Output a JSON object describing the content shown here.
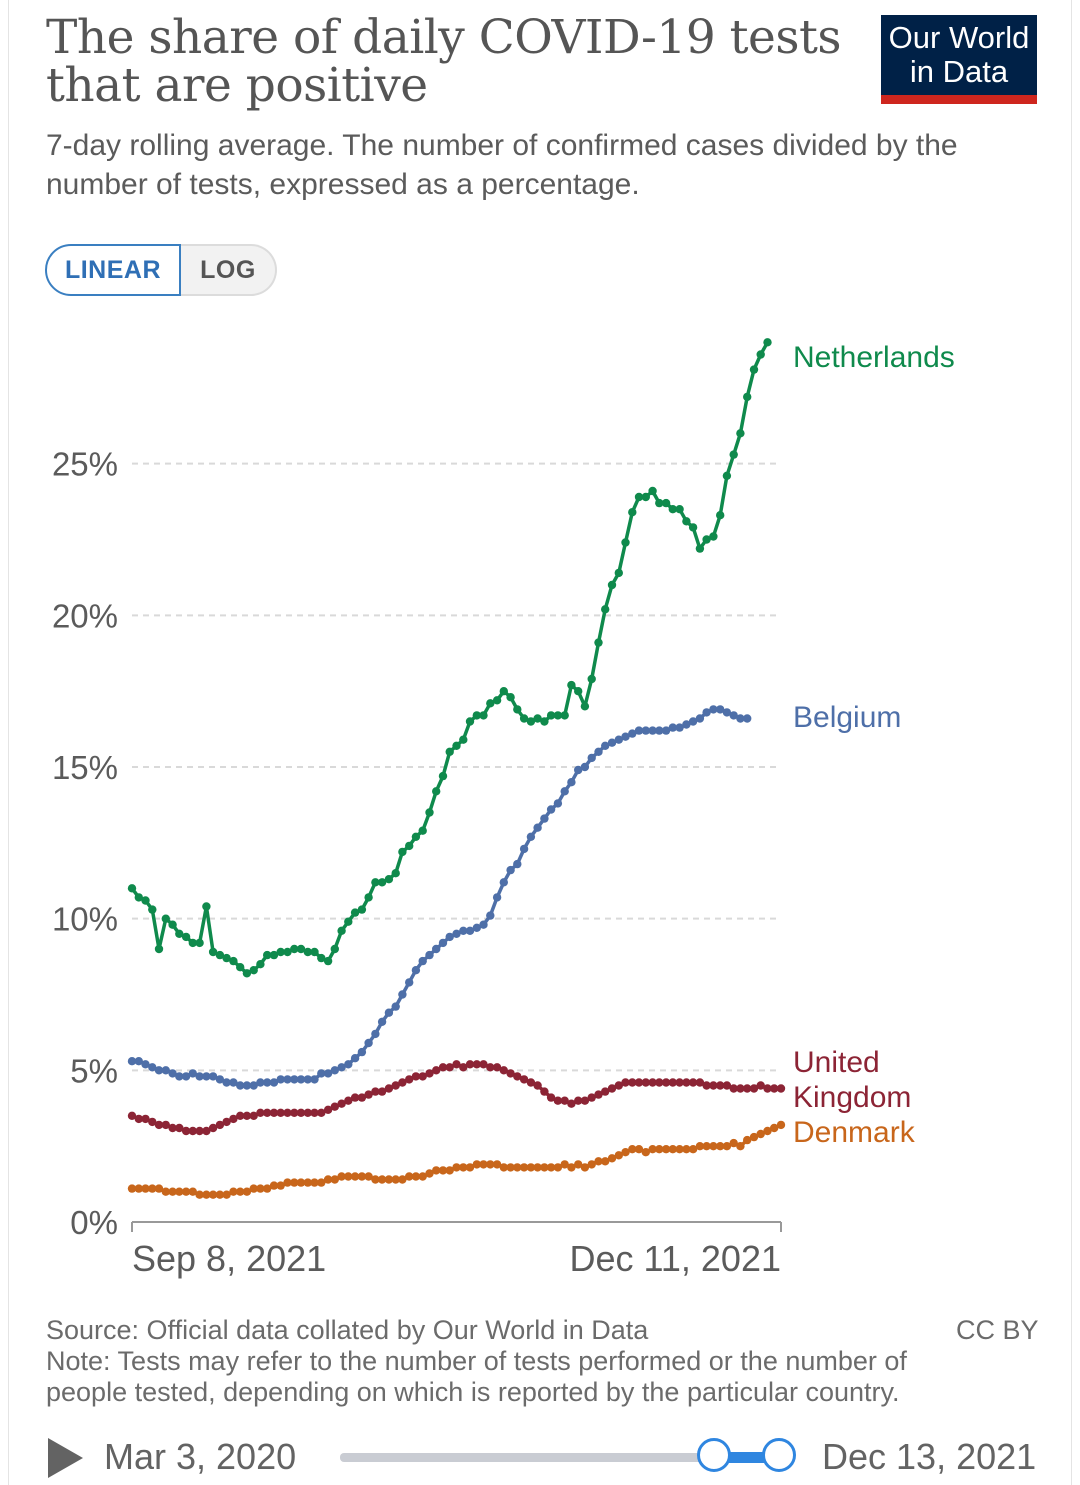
{
  "header": {
    "title": "The share of daily COVID-19 tests that are positive",
    "subtitle": "7-day rolling average. The number of confirmed cases divided by the number of tests, expressed as a percentage.",
    "logo_line1": "Our World",
    "logo_line2": "in Data"
  },
  "scale_toggle": {
    "options": [
      "LINEAR",
      "LOG"
    ],
    "selected": "LINEAR"
  },
  "colors": {
    "Netherlands": "#0f8a4c",
    "Belgium": "#4e6fa8",
    "United Kingdom": "#8c2435",
    "Denmark": "#c8661b",
    "grid": "#d9d9d9",
    "axis_text": "#5b5b5b",
    "logo_bg": "#002147",
    "logo_bar": "#ce261e",
    "accent": "#2f86e0"
  },
  "chart_data": {
    "type": "line",
    "title": "The share of daily COVID-19 tests that are positive",
    "subtitle": "7-day rolling average. The number of confirmed cases divided by the number of tests, expressed as a percentage.",
    "xlabel": "",
    "ylabel": "",
    "x_range": [
      "2021-09-08",
      "2021-12-13"
    ],
    "x_ticks": [
      "Sep 8, 2021",
      "Dec 11, 2021"
    ],
    "ylim": [
      0,
      30
    ],
    "y_ticks": [
      "0%",
      "5%",
      "10%",
      "15%",
      "20%",
      "25%"
    ],
    "y_tick_values": [
      0,
      5,
      10,
      15,
      20,
      25
    ],
    "grid": "horizontal dashed",
    "legend": "end-of-line labels",
    "series": [
      {
        "name": "Netherlands",
        "label": "Netherlands",
        "x": [
          "2021-09-08",
          "2021-09-09",
          "2021-09-10",
          "2021-09-11",
          "2021-09-12",
          "2021-09-13",
          "2021-09-14",
          "2021-09-15",
          "2021-09-16",
          "2021-09-17",
          "2021-09-18",
          "2021-09-19",
          "2021-09-20",
          "2021-09-21",
          "2021-09-22",
          "2021-09-23",
          "2021-09-24",
          "2021-09-25",
          "2021-09-26",
          "2021-09-27",
          "2021-09-28",
          "2021-09-29",
          "2021-09-30",
          "2021-10-01",
          "2021-10-02",
          "2021-10-03",
          "2021-10-04",
          "2021-10-05",
          "2021-10-06",
          "2021-10-07",
          "2021-10-08",
          "2021-10-09",
          "2021-10-10",
          "2021-10-11",
          "2021-10-12",
          "2021-10-13",
          "2021-10-14",
          "2021-10-15",
          "2021-10-16",
          "2021-10-17",
          "2021-10-18",
          "2021-10-19",
          "2021-10-20",
          "2021-10-21",
          "2021-10-22",
          "2021-10-23",
          "2021-10-24",
          "2021-10-25",
          "2021-10-26",
          "2021-10-27",
          "2021-10-28",
          "2021-10-29",
          "2021-10-30",
          "2021-10-31",
          "2021-11-01",
          "2021-11-02",
          "2021-11-03",
          "2021-11-04",
          "2021-11-05",
          "2021-11-06",
          "2021-11-07",
          "2021-11-08",
          "2021-11-09",
          "2021-11-10",
          "2021-11-11",
          "2021-11-12",
          "2021-11-13",
          "2021-11-14",
          "2021-11-15",
          "2021-11-16",
          "2021-11-17",
          "2021-11-18",
          "2021-11-19",
          "2021-11-20",
          "2021-11-21",
          "2021-11-22",
          "2021-11-23",
          "2021-11-24",
          "2021-11-25",
          "2021-11-26",
          "2021-11-27",
          "2021-11-28",
          "2021-11-29",
          "2021-11-30",
          "2021-12-01",
          "2021-12-02",
          "2021-12-03",
          "2021-12-04",
          "2021-12-05",
          "2021-12-06",
          "2021-12-07",
          "2021-12-08",
          "2021-12-09",
          "2021-12-10",
          "2021-12-11",
          "2021-12-12",
          "2021-12-13"
        ],
        "values": [
          11.0,
          10.7,
          10.6,
          10.3,
          9.0,
          10.0,
          9.8,
          9.5,
          9.4,
          9.2,
          9.2,
          10.4,
          8.9,
          8.8,
          8.7,
          8.6,
          8.4,
          8.2,
          8.3,
          8.5,
          8.8,
          8.8,
          8.9,
          8.9,
          9.0,
          9.0,
          8.9,
          8.9,
          8.7,
          8.6,
          9.0,
          9.6,
          9.9,
          10.2,
          10.3,
          10.7,
          11.2,
          11.2,
          11.3,
          11.5,
          12.2,
          12.4,
          12.7,
          12.9,
          13.5,
          14.2,
          14.7,
          15.5,
          15.7,
          15.9,
          16.5,
          16.7,
          16.7,
          17.1,
          17.2,
          17.5,
          17.3,
          16.9,
          16.6,
          16.5,
          16.6,
          16.5,
          16.7,
          16.7,
          16.7,
          17.7,
          17.5,
          17.0,
          17.9,
          19.1,
          20.2,
          21.0,
          21.4,
          22.4,
          23.4,
          23.9,
          23.9,
          24.1,
          23.7,
          23.7,
          23.5,
          23.5,
          23.1,
          22.9,
          22.2,
          22.5,
          22.6,
          23.3,
          24.6,
          25.3,
          26.0,
          27.2,
          28.1,
          28.6,
          29.0,
          null,
          null
        ]
      },
      {
        "name": "Belgium",
        "label": "Belgium",
        "x": [
          "2021-09-08",
          "2021-09-09",
          "2021-09-10",
          "2021-09-11",
          "2021-09-12",
          "2021-09-13",
          "2021-09-14",
          "2021-09-15",
          "2021-09-16",
          "2021-09-17",
          "2021-09-18",
          "2021-09-19",
          "2021-09-20",
          "2021-09-21",
          "2021-09-22",
          "2021-09-23",
          "2021-09-24",
          "2021-09-25",
          "2021-09-26",
          "2021-09-27",
          "2021-09-28",
          "2021-09-29",
          "2021-09-30",
          "2021-10-01",
          "2021-10-02",
          "2021-10-03",
          "2021-10-04",
          "2021-10-05",
          "2021-10-06",
          "2021-10-07",
          "2021-10-08",
          "2021-10-09",
          "2021-10-10",
          "2021-10-11",
          "2021-10-12",
          "2021-10-13",
          "2021-10-14",
          "2021-10-15",
          "2021-10-16",
          "2021-10-17",
          "2021-10-18",
          "2021-10-19",
          "2021-10-20",
          "2021-10-21",
          "2021-10-22",
          "2021-10-23",
          "2021-10-24",
          "2021-10-25",
          "2021-10-26",
          "2021-10-27",
          "2021-10-28",
          "2021-10-29",
          "2021-10-30",
          "2021-10-31",
          "2021-11-01",
          "2021-11-02",
          "2021-11-03",
          "2021-11-04",
          "2021-11-05",
          "2021-11-06",
          "2021-11-07",
          "2021-11-08",
          "2021-11-09",
          "2021-11-10",
          "2021-11-11",
          "2021-11-12",
          "2021-11-13",
          "2021-11-14",
          "2021-11-15",
          "2021-11-16",
          "2021-11-17",
          "2021-11-18",
          "2021-11-19",
          "2021-11-20",
          "2021-11-21",
          "2021-11-22",
          "2021-11-23",
          "2021-11-24",
          "2021-11-25",
          "2021-11-26",
          "2021-11-27",
          "2021-11-28",
          "2021-11-29",
          "2021-11-30",
          "2021-12-01",
          "2021-12-02",
          "2021-12-03",
          "2021-12-04",
          "2021-12-05",
          "2021-12-06",
          "2021-12-07",
          "2021-12-08",
          "2021-12-09",
          "2021-12-10",
          "2021-12-11",
          "2021-12-12",
          "2021-12-13"
        ],
        "values": [
          5.3,
          5.3,
          5.2,
          5.1,
          5.0,
          5.0,
          4.9,
          4.8,
          4.8,
          4.9,
          4.8,
          4.8,
          4.8,
          4.7,
          4.6,
          4.6,
          4.5,
          4.5,
          4.5,
          4.6,
          4.6,
          4.6,
          4.7,
          4.7,
          4.7,
          4.7,
          4.7,
          4.7,
          4.9,
          4.9,
          5.0,
          5.1,
          5.2,
          5.4,
          5.6,
          5.9,
          6.2,
          6.6,
          6.9,
          7.1,
          7.5,
          7.9,
          8.3,
          8.6,
          8.8,
          9.0,
          9.2,
          9.4,
          9.5,
          9.6,
          9.6,
          9.7,
          9.8,
          10.1,
          10.7,
          11.2,
          11.6,
          11.8,
          12.3,
          12.7,
          13.0,
          13.3,
          13.6,
          13.8,
          14.2,
          14.5,
          14.9,
          15.0,
          15.3,
          15.5,
          15.7,
          15.8,
          15.9,
          16.0,
          16.1,
          16.2,
          16.2,
          16.2,
          16.2,
          16.2,
          16.3,
          16.3,
          16.4,
          16.5,
          16.6,
          16.8,
          16.9,
          16.9,
          16.8,
          16.7,
          16.6,
          16.6,
          null,
          null,
          null,
          null,
          null
        ]
      },
      {
        "name": "United Kingdom",
        "label": "United Kingdom",
        "x": [
          "2021-09-08",
          "2021-09-09",
          "2021-09-10",
          "2021-09-11",
          "2021-09-12",
          "2021-09-13",
          "2021-09-14",
          "2021-09-15",
          "2021-09-16",
          "2021-09-17",
          "2021-09-18",
          "2021-09-19",
          "2021-09-20",
          "2021-09-21",
          "2021-09-22",
          "2021-09-23",
          "2021-09-24",
          "2021-09-25",
          "2021-09-26",
          "2021-09-27",
          "2021-09-28",
          "2021-09-29",
          "2021-09-30",
          "2021-10-01",
          "2021-10-02",
          "2021-10-03",
          "2021-10-04",
          "2021-10-05",
          "2021-10-06",
          "2021-10-07",
          "2021-10-08",
          "2021-10-09",
          "2021-10-10",
          "2021-10-11",
          "2021-10-12",
          "2021-10-13",
          "2021-10-14",
          "2021-10-15",
          "2021-10-16",
          "2021-10-17",
          "2021-10-18",
          "2021-10-19",
          "2021-10-20",
          "2021-10-21",
          "2021-10-22",
          "2021-10-23",
          "2021-10-24",
          "2021-10-25",
          "2021-10-26",
          "2021-10-27",
          "2021-10-28",
          "2021-10-29",
          "2021-10-30",
          "2021-10-31",
          "2021-11-01",
          "2021-11-02",
          "2021-11-03",
          "2021-11-04",
          "2021-11-05",
          "2021-11-06",
          "2021-11-07",
          "2021-11-08",
          "2021-11-09",
          "2021-11-10",
          "2021-11-11",
          "2021-11-12",
          "2021-11-13",
          "2021-11-14",
          "2021-11-15",
          "2021-11-16",
          "2021-11-17",
          "2021-11-18",
          "2021-11-19",
          "2021-11-20",
          "2021-11-21",
          "2021-11-22",
          "2021-11-23",
          "2021-11-24",
          "2021-11-25",
          "2021-11-26",
          "2021-11-27",
          "2021-11-28",
          "2021-11-29",
          "2021-11-30",
          "2021-12-01",
          "2021-12-02",
          "2021-12-03",
          "2021-12-04",
          "2021-12-05",
          "2021-12-06",
          "2021-12-07",
          "2021-12-08",
          "2021-12-09",
          "2021-12-10",
          "2021-12-11",
          "2021-12-12",
          "2021-12-13"
        ],
        "values": [
          3.5,
          3.4,
          3.4,
          3.3,
          3.2,
          3.2,
          3.1,
          3.1,
          3.0,
          3.0,
          3.0,
          3.0,
          3.1,
          3.2,
          3.3,
          3.4,
          3.5,
          3.5,
          3.5,
          3.6,
          3.6,
          3.6,
          3.6,
          3.6,
          3.6,
          3.6,
          3.6,
          3.6,
          3.6,
          3.7,
          3.8,
          3.9,
          4.0,
          4.1,
          4.1,
          4.2,
          4.3,
          4.3,
          4.4,
          4.5,
          4.6,
          4.7,
          4.8,
          4.8,
          4.9,
          5.0,
          5.1,
          5.1,
          5.2,
          5.1,
          5.2,
          5.2,
          5.2,
          5.1,
          5.1,
          5.0,
          4.9,
          4.8,
          4.7,
          4.6,
          4.5,
          4.3,
          4.1,
          4.0,
          4.0,
          3.9,
          4.0,
          4.0,
          4.1,
          4.2,
          4.3,
          4.4,
          4.5,
          4.6,
          4.6,
          4.6,
          4.6,
          4.6,
          4.6,
          4.6,
          4.6,
          4.6,
          4.6,
          4.6,
          4.6,
          4.5,
          4.5,
          4.5,
          4.5,
          4.4,
          4.4,
          4.4,
          4.4,
          4.5,
          4.4,
          4.4,
          4.4
        ]
      },
      {
        "name": "Denmark",
        "label": "Denmark",
        "x": [
          "2021-09-08",
          "2021-09-09",
          "2021-09-10",
          "2021-09-11",
          "2021-09-12",
          "2021-09-13",
          "2021-09-14",
          "2021-09-15",
          "2021-09-16",
          "2021-09-17",
          "2021-09-18",
          "2021-09-19",
          "2021-09-20",
          "2021-09-21",
          "2021-09-22",
          "2021-09-23",
          "2021-09-24",
          "2021-09-25",
          "2021-09-26",
          "2021-09-27",
          "2021-09-28",
          "2021-09-29",
          "2021-09-30",
          "2021-10-01",
          "2021-10-02",
          "2021-10-03",
          "2021-10-04",
          "2021-10-05",
          "2021-10-06",
          "2021-10-07",
          "2021-10-08",
          "2021-10-09",
          "2021-10-10",
          "2021-10-11",
          "2021-10-12",
          "2021-10-13",
          "2021-10-14",
          "2021-10-15",
          "2021-10-16",
          "2021-10-17",
          "2021-10-18",
          "2021-10-19",
          "2021-10-20",
          "2021-10-21",
          "2021-10-22",
          "2021-10-23",
          "2021-10-24",
          "2021-10-25",
          "2021-10-26",
          "2021-10-27",
          "2021-10-28",
          "2021-10-29",
          "2021-10-30",
          "2021-10-31",
          "2021-11-01",
          "2021-11-02",
          "2021-11-03",
          "2021-11-04",
          "2021-11-05",
          "2021-11-06",
          "2021-11-07",
          "2021-11-08",
          "2021-11-09",
          "2021-11-10",
          "2021-11-11",
          "2021-11-12",
          "2021-11-13",
          "2021-11-14",
          "2021-11-15",
          "2021-11-16",
          "2021-11-17",
          "2021-11-18",
          "2021-11-19",
          "2021-11-20",
          "2021-11-21",
          "2021-11-22",
          "2021-11-23",
          "2021-11-24",
          "2021-11-25",
          "2021-11-26",
          "2021-11-27",
          "2021-11-28",
          "2021-11-29",
          "2021-11-30",
          "2021-12-01",
          "2021-12-02",
          "2021-12-03",
          "2021-12-04",
          "2021-12-05",
          "2021-12-06",
          "2021-12-07",
          "2021-12-08",
          "2021-12-09",
          "2021-12-10",
          "2021-12-11",
          "2021-12-12",
          "2021-12-13"
        ],
        "values": [
          1.1,
          1.1,
          1.1,
          1.1,
          1.1,
          1.0,
          1.0,
          1.0,
          1.0,
          1.0,
          0.9,
          0.9,
          0.9,
          0.9,
          0.9,
          1.0,
          1.0,
          1.0,
          1.1,
          1.1,
          1.1,
          1.2,
          1.2,
          1.3,
          1.3,
          1.3,
          1.3,
          1.3,
          1.3,
          1.4,
          1.4,
          1.5,
          1.5,
          1.5,
          1.5,
          1.5,
          1.4,
          1.4,
          1.4,
          1.4,
          1.4,
          1.5,
          1.5,
          1.5,
          1.6,
          1.7,
          1.7,
          1.7,
          1.8,
          1.8,
          1.8,
          1.9,
          1.9,
          1.9,
          1.9,
          1.8,
          1.8,
          1.8,
          1.8,
          1.8,
          1.8,
          1.8,
          1.8,
          1.8,
          1.9,
          1.8,
          1.9,
          1.8,
          1.9,
          2.0,
          2.0,
          2.1,
          2.2,
          2.3,
          2.4,
          2.4,
          2.3,
          2.4,
          2.4,
          2.4,
          2.4,
          2.4,
          2.4,
          2.4,
          2.5,
          2.5,
          2.5,
          2.5,
          2.5,
          2.6,
          2.5,
          2.7,
          2.8,
          2.9,
          3.0,
          3.1,
          3.2
        ]
      }
    ]
  },
  "footer": {
    "source": "Source: Official data collated by Our World in Data",
    "note": "Note: Tests may refer to the number of tests performed or the number of people tested, depending on which is reported by the particular country.",
    "license": "CC BY"
  },
  "timeline": {
    "start_label": "Mar 3, 2020",
    "end_label": "Dec 13, 2021",
    "play_icon": "play-icon",
    "range_start": "2021-09-08",
    "range_end": "2021-12-13"
  }
}
